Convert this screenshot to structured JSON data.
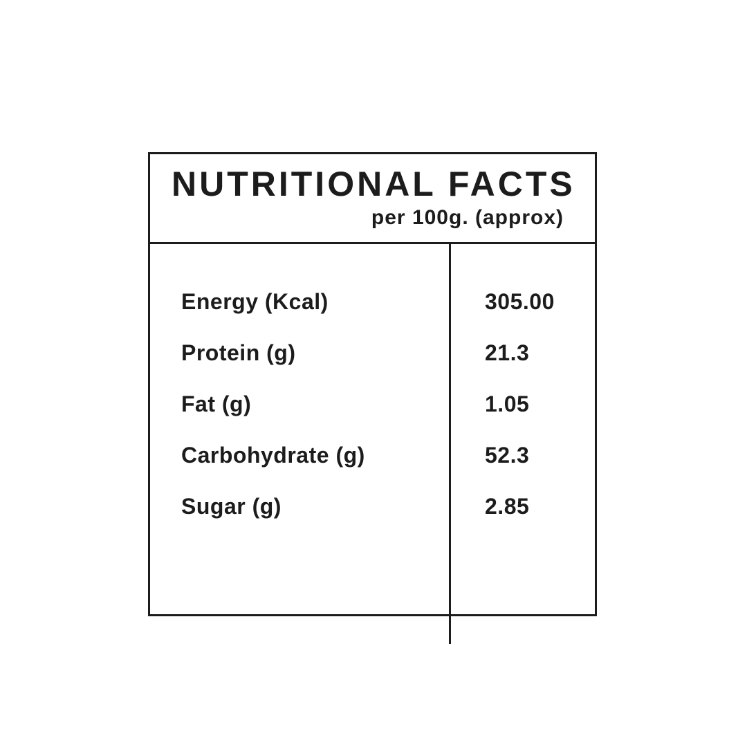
{
  "colors": {
    "ink": "#1c1c1c",
    "background": "#ffffff"
  },
  "table": {
    "title": "NUTRITIONAL FACTS",
    "subtitle": "per 100g. (approx)",
    "rows": [
      {
        "label": "Energy (Kcal)",
        "value": "305.00"
      },
      {
        "label": "Protein (g)",
        "value": "21.3"
      },
      {
        "label": "Fat (g)",
        "value": "1.05"
      },
      {
        "label": "Carbohydrate (g)",
        "value": "52.3"
      },
      {
        "label": "Sugar (g)",
        "value": "2.85"
      }
    ]
  }
}
